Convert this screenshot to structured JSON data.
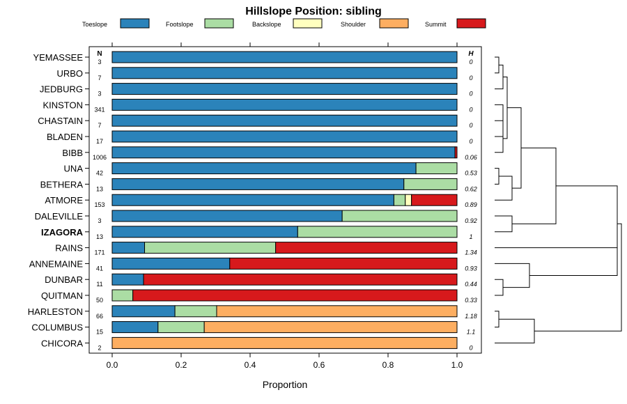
{
  "chart_data": {
    "type": "bar",
    "stacked": true,
    "orientation": "horizontal",
    "title": "Hillslope Position: sibling",
    "xlabel": "Proportion",
    "ylabel": "",
    "xlim": [
      0,
      1
    ],
    "xticks": [
      "0.0",
      "0.2",
      "0.4",
      "0.6",
      "0.8",
      "1.0"
    ],
    "n_header": "N",
    "h_header": "H",
    "legend_position": "top",
    "highlighted_category": "IZAGORA",
    "series": [
      {
        "name": "Toeslope",
        "color": "#2b83ba",
        "values": [
          1,
          1,
          1,
          1,
          1,
          1,
          0.994,
          0.881,
          0.846,
          0.817,
          0.667,
          0.538,
          0.094,
          0.341,
          0.091,
          0,
          0.182,
          0.133,
          0
        ]
      },
      {
        "name": "Footslope",
        "color": "#abdda4",
        "values": [
          0,
          0,
          0,
          0,
          0,
          0,
          0,
          0.119,
          0.154,
          0.033,
          0.333,
          0.462,
          0.38,
          0,
          0,
          0.06,
          0.121,
          0.134,
          0
        ]
      },
      {
        "name": "Backslope",
        "color": "#ffffbf",
        "values": [
          0,
          0,
          0,
          0,
          0,
          0,
          0,
          0,
          0,
          0.018,
          0,
          0,
          0,
          0,
          0,
          0,
          0,
          0,
          0
        ]
      },
      {
        "name": "Shoulder",
        "color": "#fdae61",
        "values": [
          0,
          0,
          0,
          0,
          0,
          0,
          0,
          0,
          0,
          0,
          0,
          0,
          0,
          0,
          0,
          0,
          0.697,
          0.733,
          1
        ]
      },
      {
        "name": "Summit",
        "color": "#d7191c",
        "values": [
          0,
          0,
          0,
          0,
          0,
          0,
          0.006,
          0,
          0,
          0.132,
          0,
          0,
          0.526,
          0.659,
          0.909,
          0.94,
          0,
          0,
          0
        ]
      }
    ],
    "categories": [
      "YEMASSEE",
      "URBO",
      "JEDBURG",
      "KINSTON",
      "CHASTAIN",
      "BLADEN",
      "BIBB",
      "UNA",
      "BETHERA",
      "ATMORE",
      "DALEVILLE",
      "IZAGORA",
      "RAINS",
      "ANNEMAINE",
      "DUNBAR",
      "QUITMAN",
      "HARLESTON",
      "COLUMBUS",
      "CHICORA"
    ],
    "n": [
      "3",
      "7",
      "3",
      "341",
      "7",
      "17",
      "1006",
      "42",
      "13",
      "153",
      "3",
      "13",
      "171",
      "41",
      "11",
      "50",
      "66",
      "15",
      "2"
    ],
    "h": [
      "0",
      "0",
      "0",
      "0",
      "0",
      "0",
      "0.06",
      "0.53",
      "0.62",
      "0.89",
      "0.92",
      "1",
      "1.34",
      "0.93",
      "0.44",
      "0.33",
      "1.18",
      "1.1",
      "0"
    ],
    "dendrogram": "hierarchical clustering of the profiles (drawn at right)"
  }
}
